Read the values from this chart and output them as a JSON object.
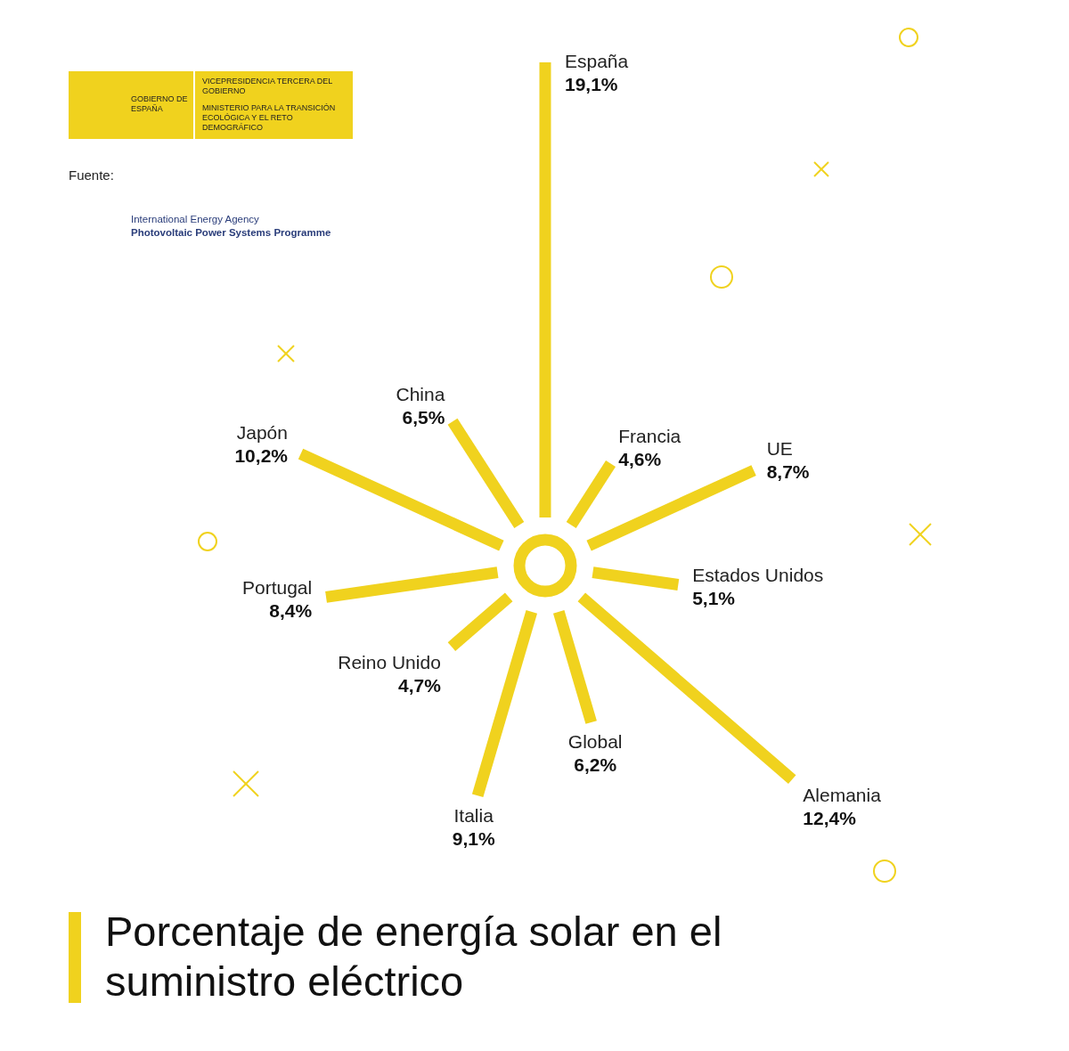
{
  "chart_data": {
    "type": "other",
    "title": "Porcentaje de energía solar en el suministro eléctrico",
    "categories": [
      "España",
      "Francia",
      "UE",
      "Estados Unidos",
      "Alemania",
      "Global",
      "Italia",
      "Reino Unido",
      "Portugal",
      "Japón",
      "China"
    ],
    "values": [
      19.1,
      4.6,
      8.7,
      5.1,
      12.4,
      6.2,
      9.1,
      4.7,
      8.4,
      10.2,
      6.5
    ],
    "value_labels": [
      "19,1%",
      "4,6%",
      "8,7%",
      "5,1%",
      "12,4%",
      "6,2%",
      "9,1%",
      "4,7%",
      "8,4%",
      "10,2%",
      "6,5%"
    ],
    "color": "#f0d21e",
    "annotations": [
      "GOBIERNO DE ESPAÑA",
      "VICEPRESIDENCIA TERCERA DEL GOBIERNO",
      "MINISTERIO PARA LA TRANSICIÓN ECOLÓGICA Y EL RETO DEMOGRÁFICO",
      "Fuente:",
      "International Energy Agency",
      "Photovoltaic Power Systems Programme"
    ]
  }
}
